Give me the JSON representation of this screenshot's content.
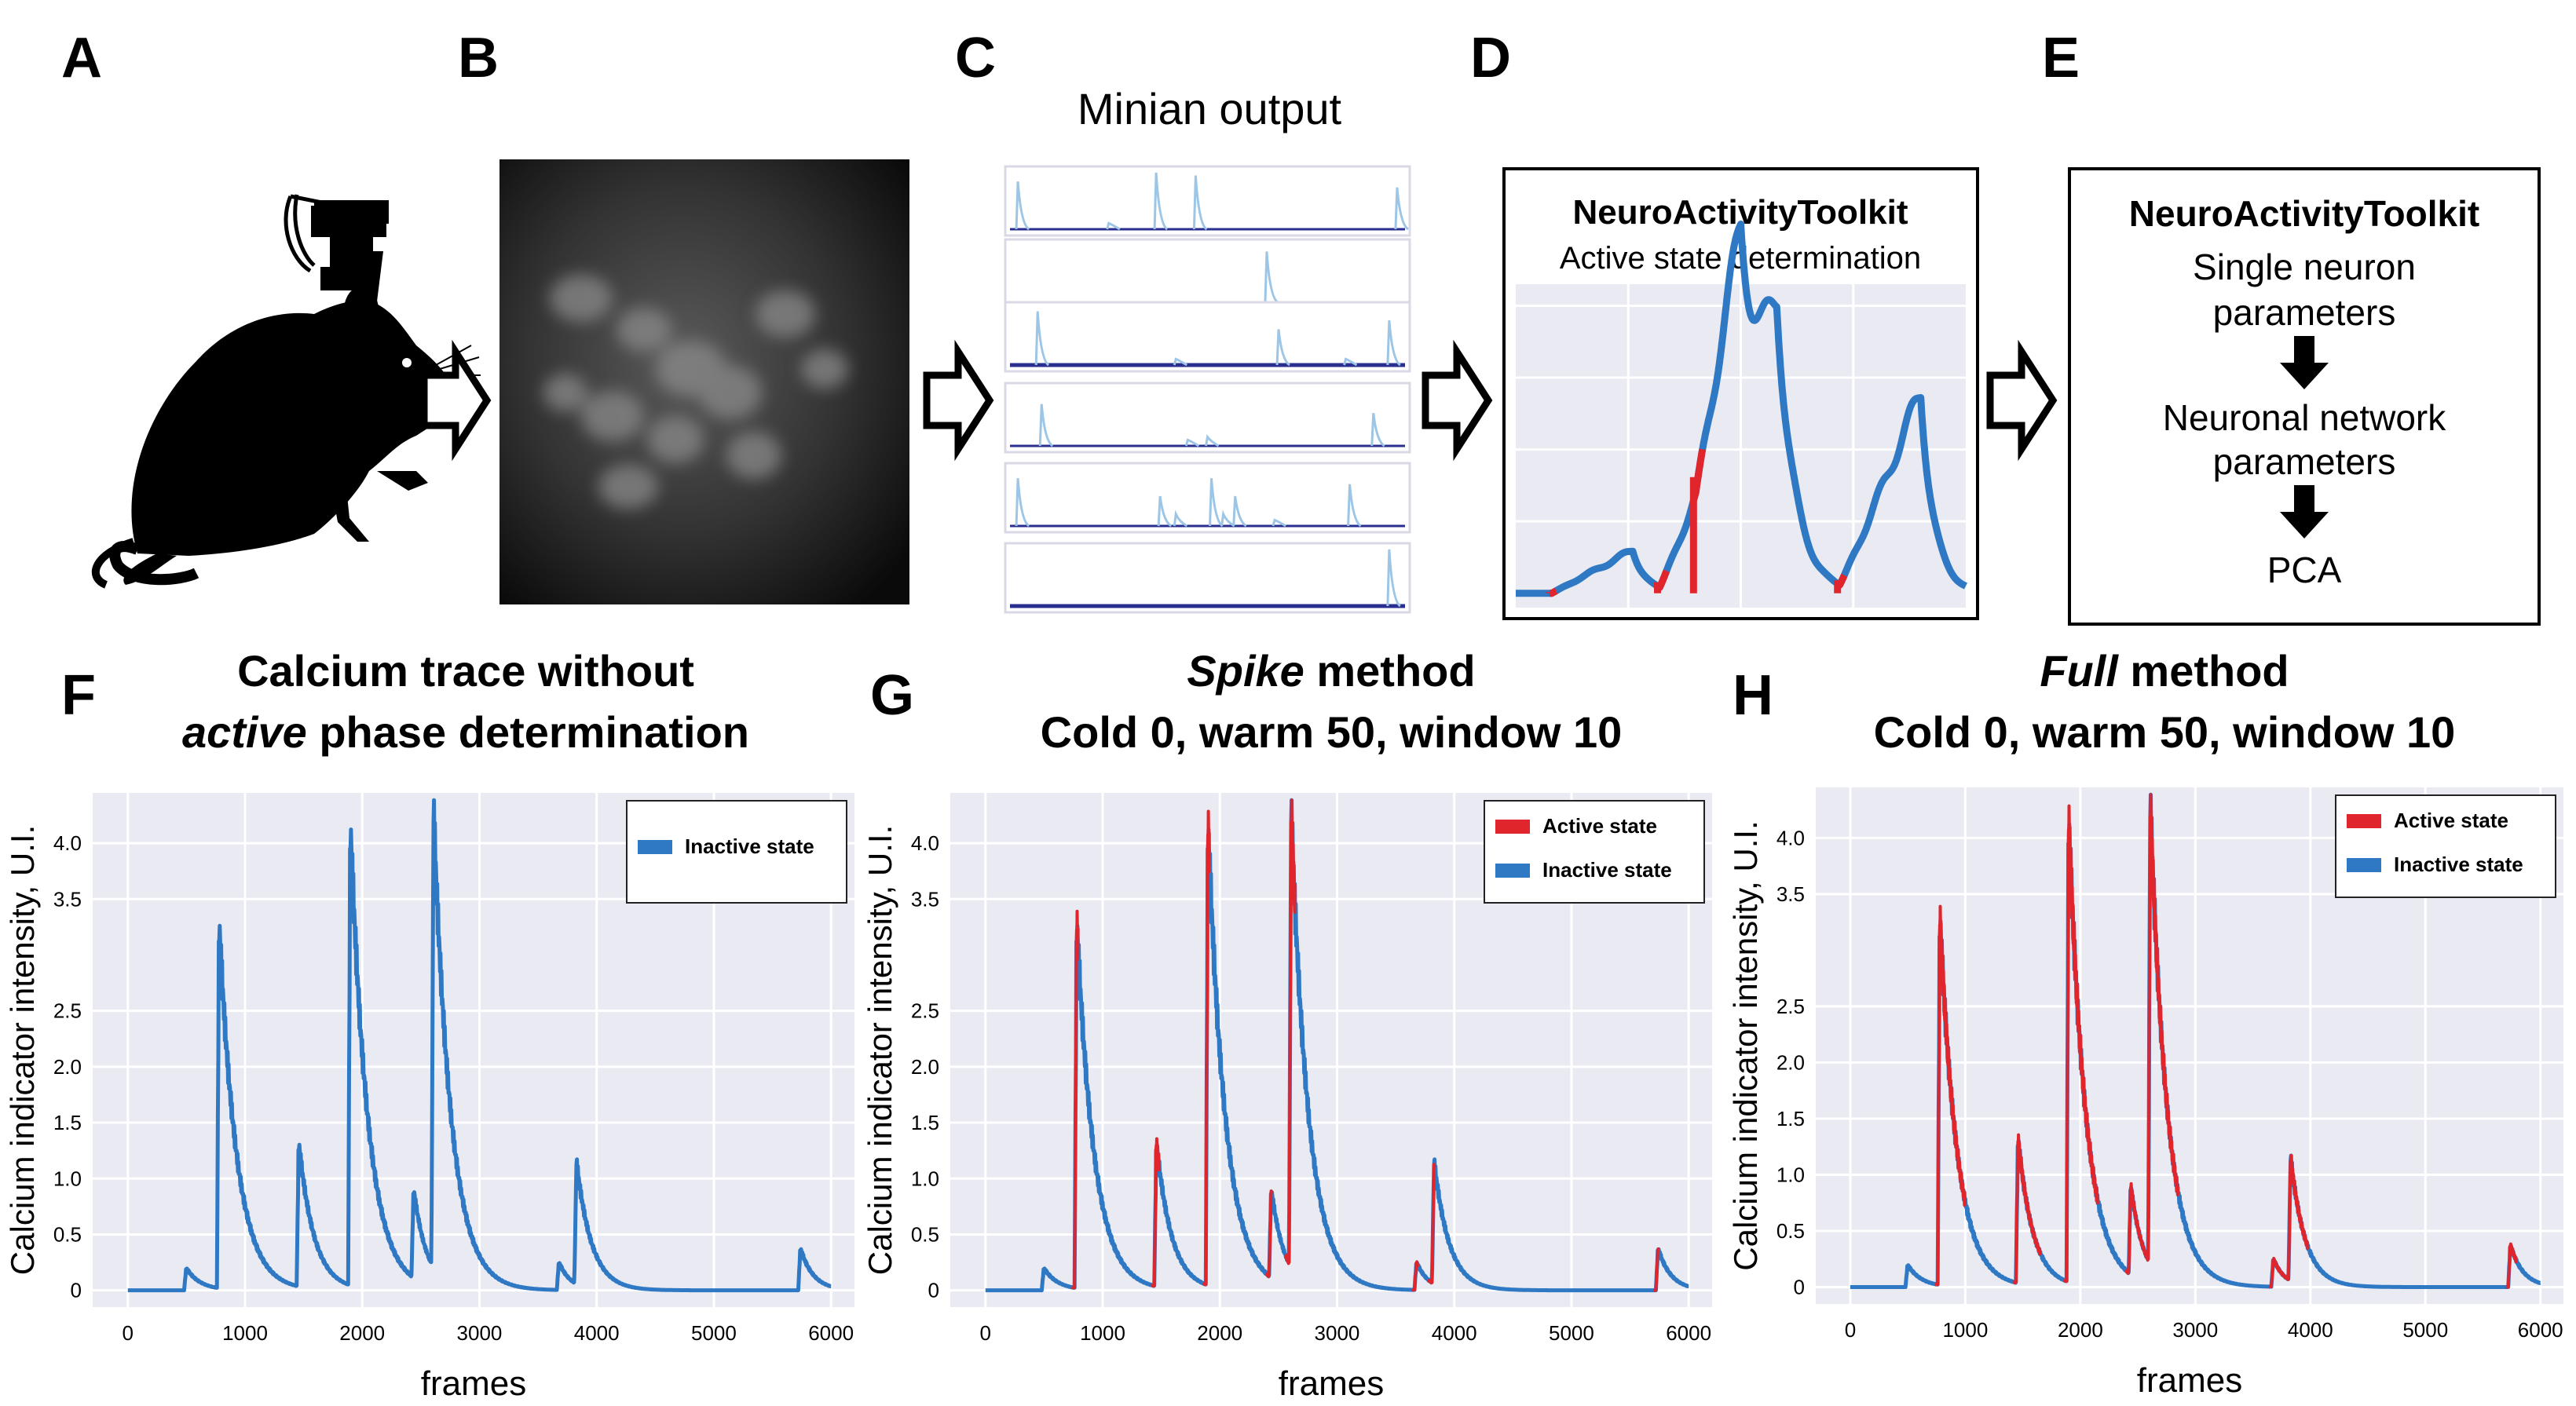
{
  "panel_letters": {
    "a": "A",
    "b": "B",
    "c": "C",
    "d": "D",
    "e": "E",
    "f": "F",
    "g": "G",
    "h": "H"
  },
  "colors": {
    "active": "#e0262c",
    "inactive": "#2e78c4",
    "plot_bg": "#eaeaf2",
    "grid": "#ffffff",
    "minian_trace": "#9dc6e6",
    "minian_base": "#2a2f8f"
  },
  "minian": {
    "title": "Minian output",
    "trace_count": 6
  },
  "panel_d": {
    "title": "NeuroActivityToolkit",
    "subtitle": "Active state determination"
  },
  "panel_e": {
    "title": "NeuroActivityToolkit",
    "step1": "Single neuron parameters",
    "step1_line1": "Single neuron",
    "step1_line2": "parameters",
    "step2_line1": "Neuronal network",
    "step2_line2": "parameters",
    "step3": "PCA"
  },
  "panel_f": {
    "title_line1": "Calcium trace without",
    "title_line2_em": "active",
    "title_line2_rest": " phase determination"
  },
  "panel_g": {
    "title_line1_em": "Spike",
    "title_line1_rest": " method",
    "title_line2": "Cold 0, warm 50, window 10"
  },
  "panel_h": {
    "title_line1_em": "Full",
    "title_line1_rest": " method",
    "title_line2": "Cold 0, warm 50, window 10"
  },
  "legend": {
    "active": "Active state",
    "inactive": "Inactive state"
  },
  "chart_data": [
    {
      "id": "F",
      "type": "line",
      "title": "Calcium trace without active phase determination",
      "xlabel": "frames",
      "ylabel": "Calcium indicator intensity, U.I.",
      "xlim": [
        -300,
        6200
      ],
      "ylim": [
        -0.15,
        4.45
      ],
      "xticks": [
        0,
        1000,
        2000,
        3000,
        4000,
        5000,
        6000
      ],
      "yticks": [
        0,
        0.5,
        1.0,
        1.5,
        2.0,
        2.5,
        3.5,
        4.0
      ],
      "ytick_labels": [
        "0",
        "0.5",
        "1.0",
        "1.5",
        "2.0",
        "2.5",
        "3.5",
        "4.0"
      ],
      "legend": [
        "Inactive state"
      ],
      "series": [
        {
          "name": "Inactive state",
          "events": [
            [
              480,
              0.2,
              120
            ],
            [
              760,
              3.3,
              150
            ],
            [
              1440,
              1.3,
              130
            ],
            [
              1880,
              4.15,
              150
            ],
            [
              2420,
              0.8,
              110
            ],
            [
              2590,
              4.1,
              150
            ],
            [
              3660,
              0.25,
              100
            ],
            [
              3810,
              1.1,
              130
            ],
            [
              5720,
              0.38,
              110
            ]
          ]
        }
      ],
      "active_ranges": []
    },
    {
      "id": "G",
      "type": "line",
      "title": "Spike method Cold 0, warm 50, window 10",
      "xlabel": "frames",
      "ylabel": "Calcium indicator intensity, U.I.",
      "xlim": [
        -300,
        6200
      ],
      "ylim": [
        -0.15,
        4.45
      ],
      "xticks": [
        0,
        1000,
        2000,
        3000,
        4000,
        5000,
        6000
      ],
      "yticks": [
        0,
        0.5,
        1.0,
        1.5,
        2.0,
        2.5,
        3.5,
        4.0
      ],
      "ytick_labels": [
        "0",
        "0.5",
        "1.0",
        "1.5",
        "2.0",
        "2.5",
        "3.5",
        "4.0"
      ],
      "legend": [
        "Active state",
        "Inactive state"
      ],
      "series": [
        {
          "name": "Inactive state",
          "events": [
            [
              480,
              0.2,
              120
            ],
            [
              760,
              3.3,
              150
            ],
            [
              1440,
              1.3,
              130
            ],
            [
              1880,
              4.15,
              150
            ],
            [
              2420,
              0.8,
              110
            ],
            [
              2590,
              4.1,
              150
            ],
            [
              3660,
              0.25,
              100
            ],
            [
              3810,
              1.1,
              130
            ],
            [
              5720,
              0.38,
              110
            ]
          ]
        }
      ],
      "active_ranges": [
        [
          740,
          790
        ],
        [
          1420,
          1480
        ],
        [
          1860,
          1910
        ],
        [
          2400,
          2440
        ],
        [
          2560,
          2640
        ],
        [
          3640,
          3690
        ],
        [
          3780,
          3830
        ],
        [
          5700,
          5740
        ]
      ]
    },
    {
      "id": "H",
      "type": "line",
      "title": "Full method Cold 0, warm 50, window 10",
      "xlabel": "frames",
      "ylabel": "Calcium indicator intensity, U.I.",
      "xlim": [
        -300,
        6200
      ],
      "ylim": [
        -0.15,
        4.45
      ],
      "xticks": [
        0,
        1000,
        2000,
        3000,
        4000,
        5000,
        6000
      ],
      "yticks": [
        0,
        0.5,
        1.0,
        1.5,
        2.0,
        2.5,
        3.5,
        4.0
      ],
      "ytick_labels": [
        "0",
        "0.5",
        "1.0",
        "1.5",
        "2.0",
        "2.5",
        "3.5",
        "4.0"
      ],
      "legend": [
        "Active state",
        "Inactive state"
      ],
      "series": [
        {
          "name": "Inactive state",
          "events": [
            [
              480,
              0.2,
              120
            ],
            [
              760,
              3.3,
              150
            ],
            [
              1440,
              1.3,
              130
            ],
            [
              1880,
              4.15,
              150
            ],
            [
              2420,
              0.8,
              110
            ],
            [
              2590,
              4.1,
              150
            ],
            [
              3660,
              0.25,
              100
            ],
            [
              3810,
              1.1,
              130
            ],
            [
              5720,
              0.38,
              110
            ]
          ]
        }
      ],
      "active_ranges": [
        [
          740,
          1000
        ],
        [
          1420,
          1650
        ],
        [
          1860,
          2150
        ],
        [
          2400,
          2850
        ],
        [
          3640,
          3980
        ],
        [
          5700,
          5790
        ]
      ]
    },
    {
      "id": "D",
      "type": "line",
      "title": "Active state determination",
      "xlim": [
        0,
        100
      ],
      "ylim": [
        -0.2,
        4.3
      ],
      "xticks": [],
      "yticks": [],
      "series": [
        {
          "name": "Inactive state",
          "events": [
            [
              8,
              0.6,
              3
            ],
            [
              32,
              3.0,
              3
            ],
            [
              40,
              3.9,
              4
            ],
            [
              72,
              2.8,
              3
            ]
          ]
        }
      ],
      "active_ranges": [
        [
          7.5,
          9
        ],
        [
          31.5,
          33.5
        ],
        [
          39.5,
          41.5
        ],
        [
          71.5,
          73
        ]
      ]
    }
  ]
}
